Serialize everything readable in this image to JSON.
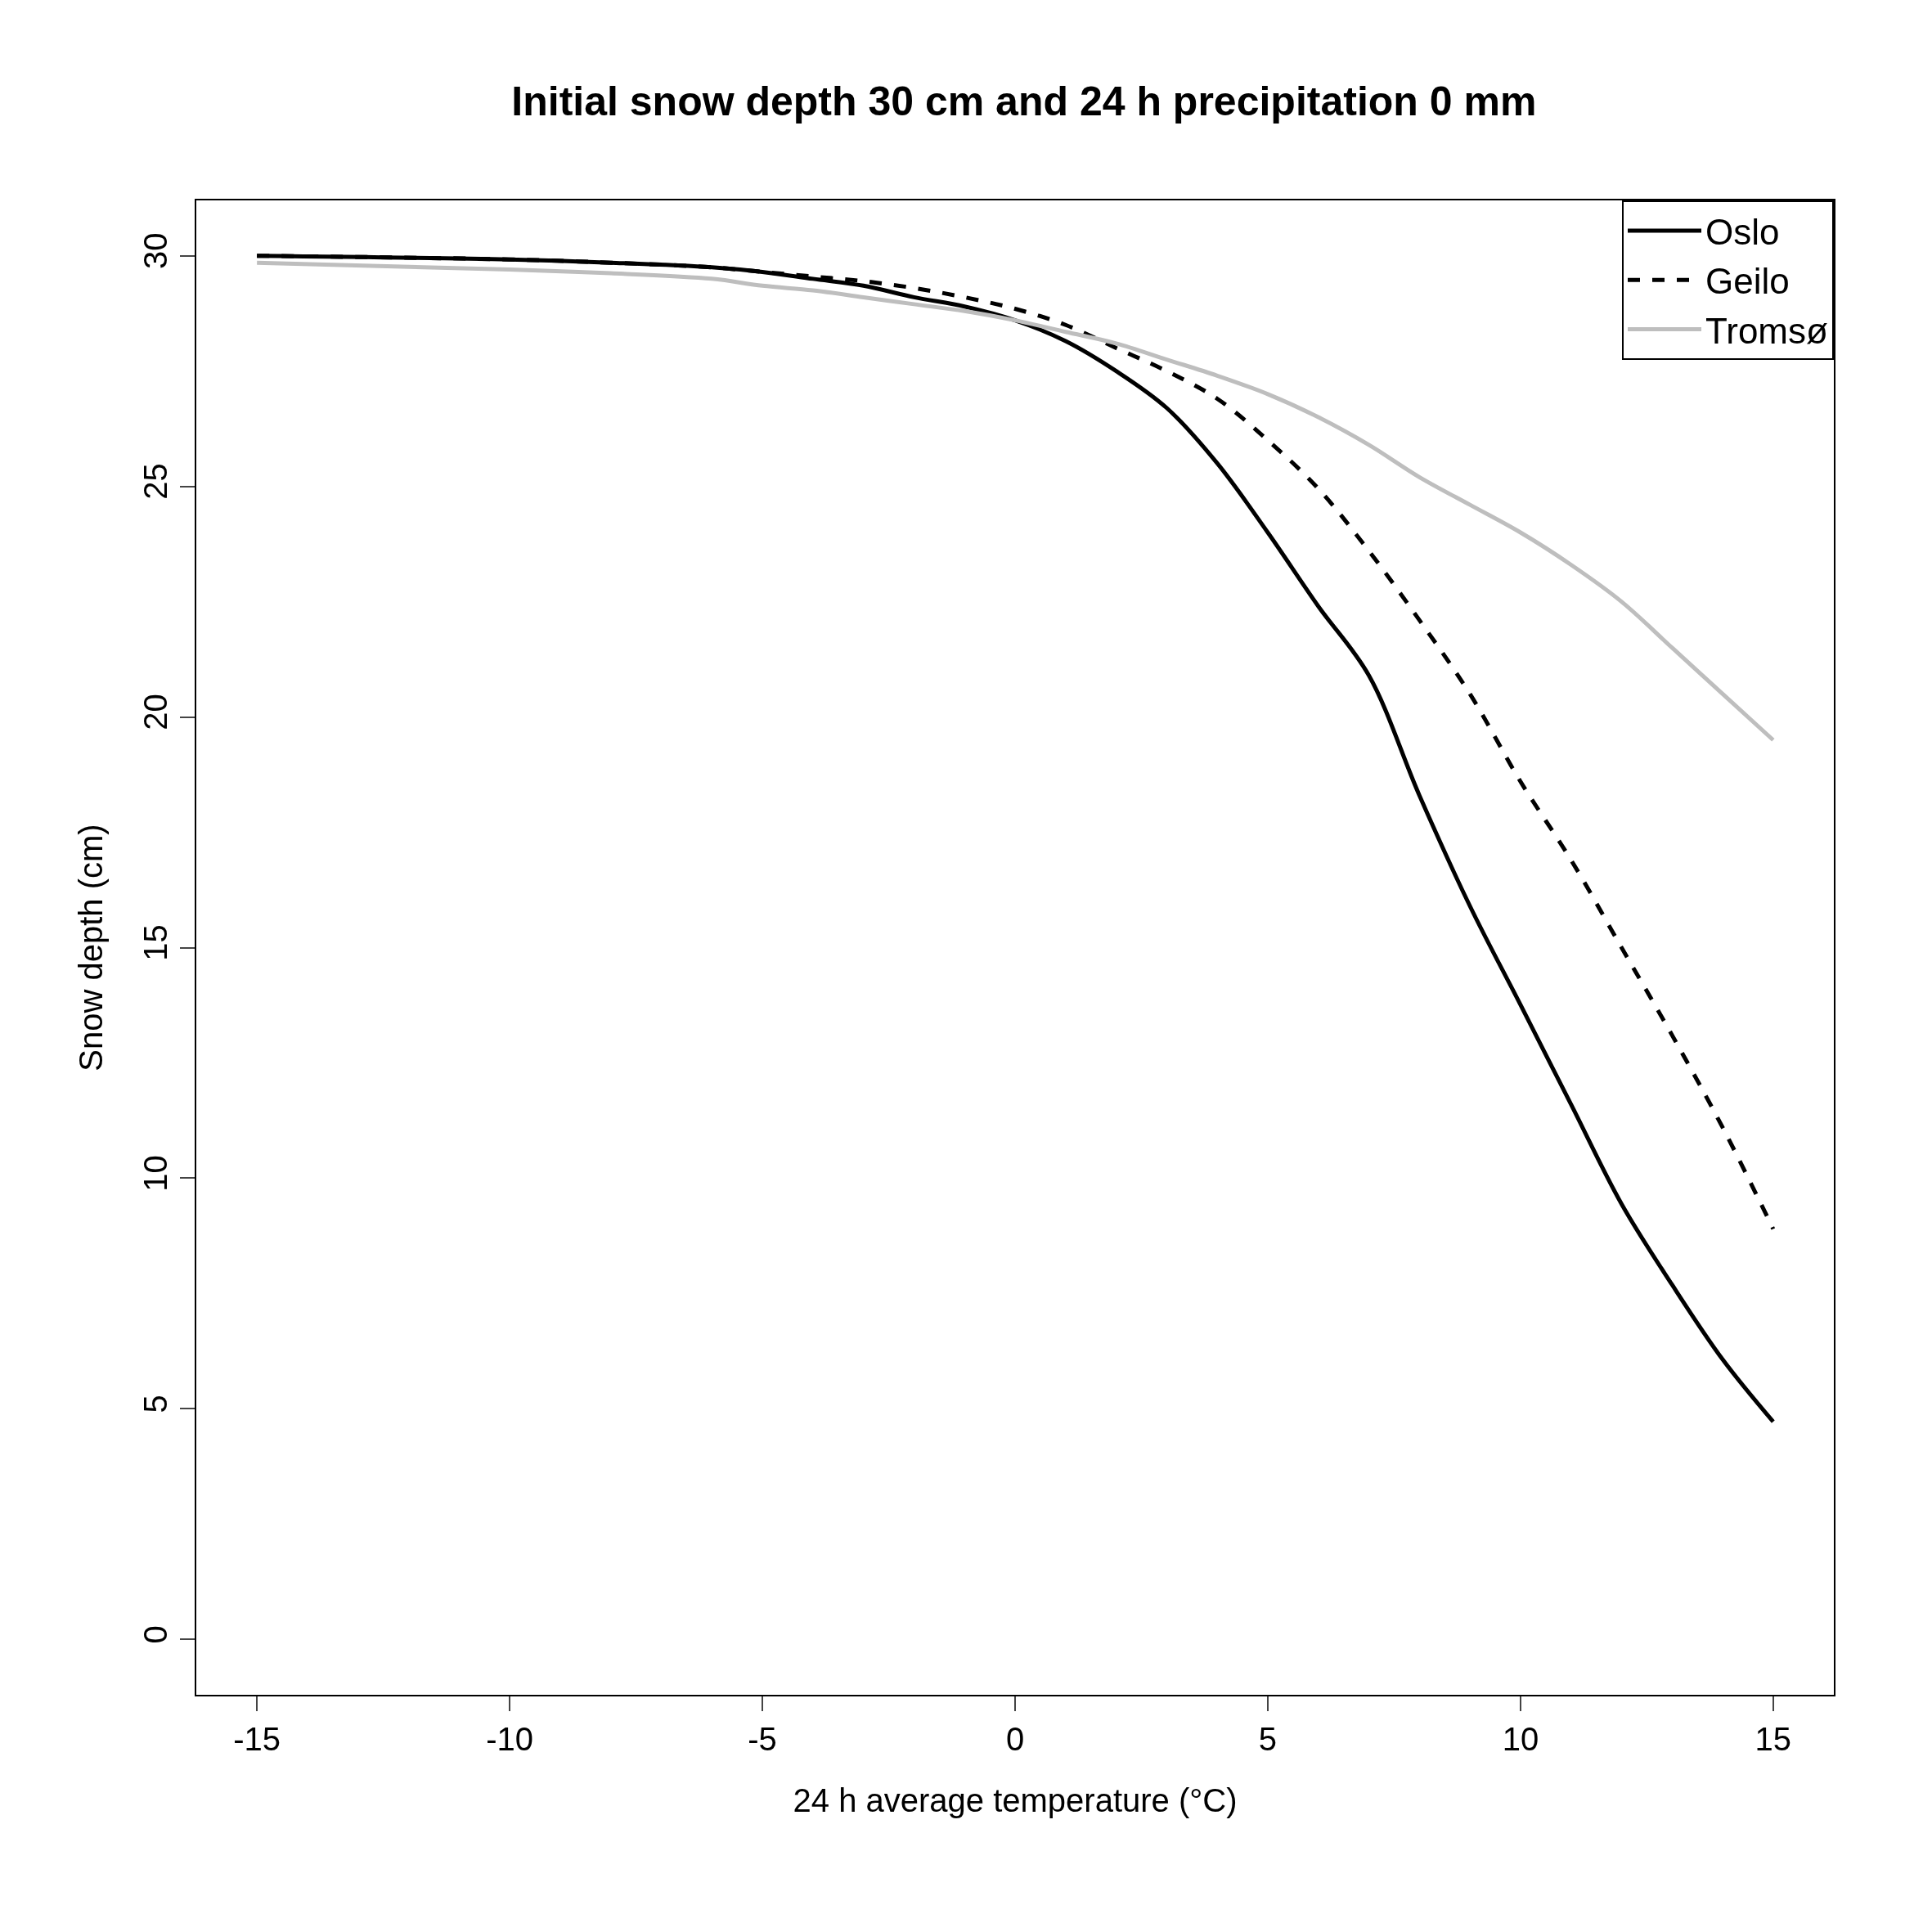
{
  "chart_data": {
    "type": "line",
    "title": "Initial snow depth 30 cm and 24 h precipitation 0 mm",
    "xlabel": "24 h average temperature (°C)",
    "ylabel": "Snow depth (cm)",
    "x": [
      -15,
      -10,
      -8,
      -6,
      -5,
      -4,
      -3,
      -2,
      -1,
      0,
      1,
      2,
      3,
      4,
      5,
      6,
      7,
      8,
      9,
      10,
      11,
      12,
      13,
      14,
      15
    ],
    "series": [
      {
        "name": "Oslo",
        "color": "#000000",
        "line_style": "solid",
        "values": [
          30,
          29.92,
          29.85,
          29.75,
          29.65,
          29.5,
          29.35,
          29.1,
          28.9,
          28.6,
          28.15,
          27.5,
          26.7,
          25.5,
          24.0,
          22.4,
          20.9,
          18.3,
          15.9,
          13.76,
          11.6,
          9.44,
          7.69,
          6.07,
          4.72
        ]
      },
      {
        "name": "Geilo",
        "color": "#000000",
        "line_style": "dashed",
        "values": [
          30,
          29.92,
          29.85,
          29.75,
          29.65,
          29.55,
          29.45,
          29.3,
          29.1,
          28.85,
          28.5,
          28.0,
          27.5,
          26.9,
          26.0,
          24.95,
          23.6,
          22.1,
          20.5,
          18.6,
          16.9,
          15.0,
          13.1,
          11.1,
          8.9
        ]
      },
      {
        "name": "Tromsø",
        "color": "#bebebe",
        "line_style": "solid",
        "values": [
          29.85,
          29.7,
          29.62,
          29.5,
          29.35,
          29.25,
          29.1,
          28.95,
          28.8,
          28.6,
          28.35,
          28.1,
          27.75,
          27.4,
          27.0,
          26.5,
          25.9,
          25.2,
          24.6,
          24.0,
          23.3,
          22.5,
          21.5,
          20.5,
          19.5
        ]
      }
    ],
    "xlim": [
      -16.2,
      16.2
    ],
    "ylim": [
      -1.2,
      31.2
    ],
    "xticks": [
      -15,
      -10,
      -5,
      0,
      5,
      10,
      15
    ],
    "yticks": [
      0,
      5,
      10,
      15,
      20,
      25,
      30
    ],
    "legend": "top right",
    "marker": "none"
  }
}
